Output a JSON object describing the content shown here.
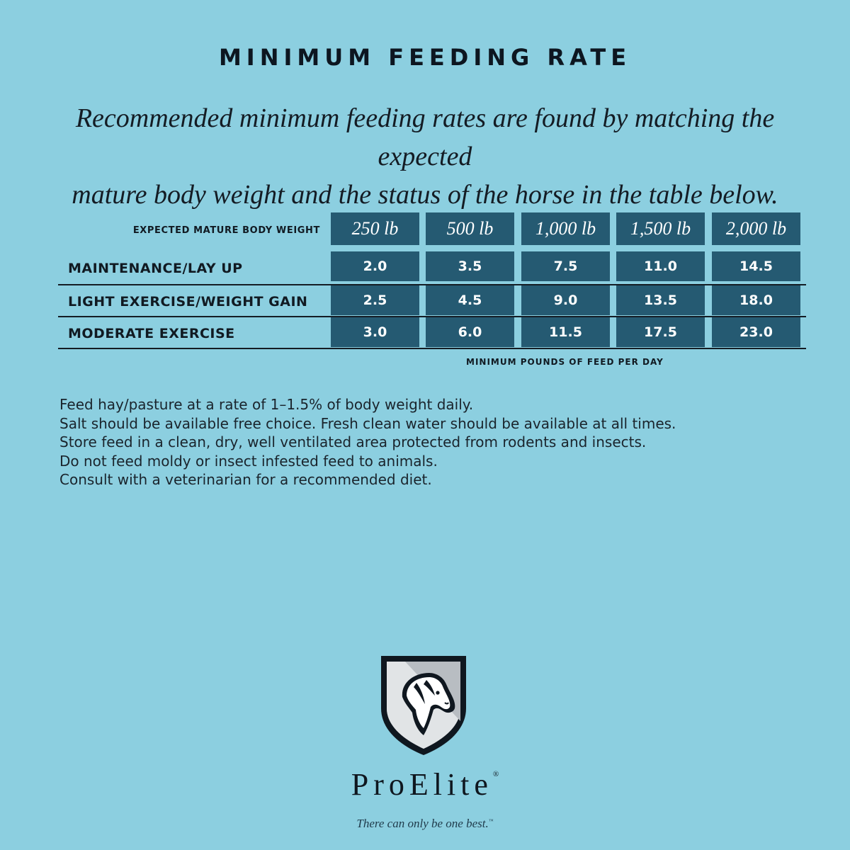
{
  "title": "MINIMUM FEEDING RATE",
  "subtitle": {
    "line1": "Recommended minimum feeding rates are found by matching the expected",
    "line2": "mature body weight and the status of the horse in the table below."
  },
  "table": {
    "weight_label": "EXPECTED MATURE BODY WEIGHT",
    "weights": [
      "250 lb",
      "500 lb",
      "1,000 lb",
      "1,500 lb",
      "2,000 lb"
    ],
    "rows": [
      {
        "label": "MAINTENANCE/LAY UP",
        "values": [
          "2.0",
          "3.5",
          "7.5",
          "11.0",
          "14.5"
        ]
      },
      {
        "label": "LIGHT EXERCISE/WEIGHT GAIN",
        "values": [
          "2.5",
          "4.5",
          "9.0",
          "13.5",
          "18.0"
        ]
      },
      {
        "label": "MODERATE EXERCISE",
        "values": [
          "3.0",
          "6.0",
          "11.5",
          "17.5",
          "23.0"
        ]
      }
    ],
    "footnote": "MINIMUM POUNDS OF FEED PER DAY"
  },
  "notes": [
    "Feed hay/pasture at a rate of 1–1.5% of body weight daily.",
    "Salt should be available free choice. Fresh clean water should be available at all times.",
    "Store feed in a clean, dry, well ventilated area protected from rodents and insects.",
    "Do not feed moldy or insect infested feed to animals.",
    "Consult with a veterinarian for a recommended diet."
  ],
  "brand": {
    "name": "ProElite",
    "registered": "®"
  },
  "tagline": {
    "text": "There can only be one best.",
    "trademark": "™"
  },
  "colors": {
    "background": "#8ccfe0",
    "cell": "#255a72",
    "text": "#111a22"
  }
}
